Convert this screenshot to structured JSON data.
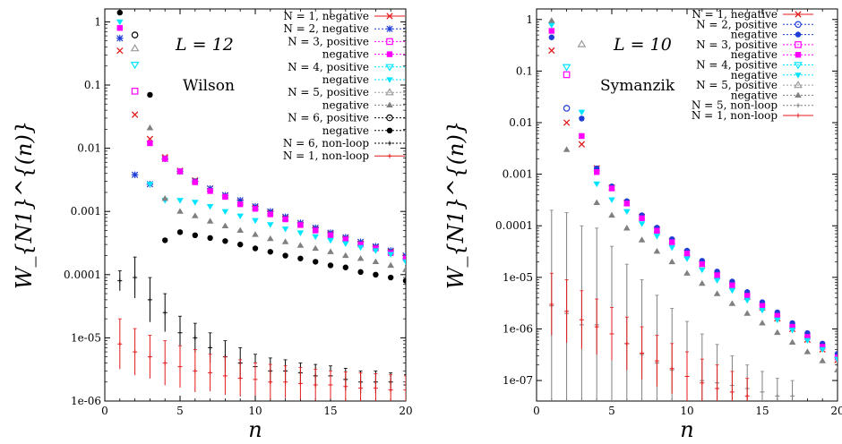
{
  "chart_data": [
    {
      "type": "scatter",
      "ylabel": "W_{N1}^{(n)}",
      "xlabel": "n",
      "yscale": "log",
      "xlim": [
        0,
        20
      ],
      "ylim": [
        1e-06,
        1.6
      ],
      "xticks": [
        "0",
        "5",
        "10",
        "15",
        "20"
      ],
      "yticks": [
        {
          "v": 1,
          "label": "1"
        },
        {
          "v": 0.1,
          "label": "0.1"
        },
        {
          "v": 0.01,
          "label": "0.01"
        },
        {
          "v": 0.001,
          "label": "0.001"
        },
        {
          "v": 0.0001,
          "label": "0.0001"
        },
        {
          "v": 1e-05,
          "label": "1e-05"
        },
        {
          "v": 1e-06,
          "label": "1e-06"
        }
      ],
      "annotations": [
        "L = 12",
        "Wilson"
      ],
      "legend_position": "top-right",
      "series": [
        {
          "name": "N = 1, negative",
          "color": "#e41a1c",
          "marker": "x",
          "x": [
            1,
            2,
            3,
            4,
            5,
            6,
            7,
            8,
            9,
            10,
            11,
            12,
            13,
            14,
            15,
            16,
            17,
            18,
            19,
            20
          ],
          "y": [
            0.35,
            0.034,
            0.014,
            0.0072,
            0.0044,
            0.0031,
            0.0023,
            0.0018,
            0.0014,
            0.00115,
            0.00095,
            0.00078,
            0.00062,
            0.00052,
            0.00044,
            0.00037,
            0.00031,
            0.00027,
            0.00023,
            0.00019
          ]
        },
        {
          "name": "N = 2, negative",
          "color": "#1f3cd8",
          "marker": "asterisk",
          "x": [
            1,
            2,
            3,
            4,
            5,
            6,
            7,
            8,
            9,
            10,
            11,
            12,
            13,
            14,
            15,
            16,
            17,
            18,
            19,
            20
          ],
          "y": [
            0.55,
            0.0038,
            0.0027,
            0.0068,
            0.0043,
            0.003,
            0.0023,
            0.0018,
            0.0015,
            0.0012,
            0.001,
            0.00082,
            0.00066,
            0.00055,
            0.00046,
            0.00039,
            0.00033,
            0.00028,
            0.00024,
            0.0002
          ]
        },
        {
          "name": "N = 3, positive",
          "color": "#ff00ff",
          "marker": "open-square",
          "x": [
            2
          ],
          "y": [
            0.08
          ]
        },
        {
          "name": "negative",
          "color": "#ff00ff",
          "marker": "filled-square",
          "x": [
            1,
            3,
            4,
            5,
            6,
            7,
            8,
            9,
            10,
            11,
            12,
            13,
            14,
            15,
            16,
            17,
            18,
            19,
            20
          ],
          "y": [
            0.8,
            0.012,
            0.0068,
            0.0043,
            0.0029,
            0.0021,
            0.0017,
            0.0013,
            0.0011,
            0.0009,
            0.00075,
            0.00061,
            0.0005,
            0.00042,
            0.00036,
            0.0003,
            0.00026,
            0.00022,
            0.00018
          ]
        },
        {
          "name": "N = 4, positive",
          "color": "#00e5ff",
          "marker": "open-triangle-down",
          "x": [
            2
          ],
          "y": [
            0.21
          ]
        },
        {
          "name": "negative",
          "color": "#00e5ff",
          "marker": "filled-triangle-down",
          "x": [
            1,
            3,
            4,
            5,
            6,
            7,
            8,
            9,
            10,
            11,
            12,
            13,
            14,
            15,
            16,
            17,
            18,
            19,
            20
          ],
          "y": [
            1.0,
            0.0027,
            0.0015,
            0.0015,
            0.0014,
            0.0012,
            0.001,
            0.00085,
            0.00072,
            0.00062,
            0.00053,
            0.00046,
            0.0004,
            0.00035,
            0.00031,
            0.00027,
            0.00024,
            0.00021,
            0.00016
          ]
        },
        {
          "name": "N = 5, positive",
          "color": "#9a9a9a",
          "marker": "open-triangle",
          "x": [
            2
          ],
          "y": [
            0.38
          ]
        },
        {
          "name": "negative",
          "color": "#808080",
          "marker": "filled-triangle",
          "x": [
            3,
            4,
            5,
            6,
            7,
            8,
            9,
            10,
            11,
            12,
            13,
            14,
            15,
            16,
            17,
            18,
            19,
            20
          ],
          "y": [
            0.021,
            0.0016,
            0.001,
            0.00085,
            0.0007,
            0.00059,
            0.0005,
            0.00043,
            0.00037,
            0.00033,
            0.00029,
            0.00026,
            0.00023,
            0.0002,
            0.00018,
            0.00016,
            0.00014,
            0.00012
          ]
        },
        {
          "name": "N = 6, positive",
          "color": "#000000",
          "marker": "open-circle",
          "x": [
            2
          ],
          "y": [
            0.62
          ]
        },
        {
          "name": "negative",
          "color": "#000000",
          "marker": "filled-circle",
          "x": [
            1,
            3,
            4,
            5,
            6,
            7,
            8,
            9,
            10,
            11,
            12,
            13,
            14,
            15,
            16,
            17,
            18,
            19,
            20
          ],
          "y": [
            1.4,
            0.07,
            0.00035,
            0.00047,
            0.00042,
            0.00038,
            0.00034,
            0.0003,
            0.00026,
            0.00023,
            0.0002,
            0.00018,
            0.00016,
            0.00014,
            0.00013,
            0.00011,
            0.0001,
            9e-05,
            8e-05
          ]
        },
        {
          "name": "N = 6, non-loop",
          "color": "#000000",
          "marker": "plus-errorbar",
          "x": [
            1,
            2,
            3,
            4,
            5,
            6,
            7,
            8,
            9,
            10,
            11,
            12,
            13,
            14,
            15,
            16,
            17,
            18,
            19,
            20
          ],
          "y": [
            8e-05,
            9e-05,
            4e-05,
            2.5e-05,
            1.2e-05,
            1e-05,
            7e-06,
            5e-06,
            4e-06,
            3.5e-06,
            3e-06,
            3e-06,
            2.8e-06,
            2.5e-06,
            2.5e-06,
            2.2e-06,
            2e-06,
            2e-06,
            2e-06,
            1.8e-06
          ],
          "yerr_hi": [
            0.000115,
            0.00019,
            9e-05,
            5e-05,
            2.2e-05,
            1.7e-05,
            1.2e-05,
            9e-06,
            7e-06,
            5.5e-06,
            4.8e-06,
            4.5e-06,
            4e-06,
            3.8e-06,
            3.6e-06,
            3.3e-06,
            3e-06,
            3e-06,
            2.8e-06,
            2.6e-06
          ]
        },
        {
          "name": "N = 1, non-loop",
          "color": "#e41a1c",
          "marker": "plus-errorbar",
          "x": [
            1,
            2,
            3,
            4,
            5,
            6,
            7,
            8,
            9,
            10,
            11,
            12,
            13,
            14,
            15,
            16,
            17,
            18,
            19,
            20
          ],
          "y": [
            8e-06,
            6e-06,
            5e-06,
            4e-06,
            3.5e-06,
            3e-06,
            2.8e-06,
            2.5e-06,
            2.3e-06,
            2.2e-06,
            2e-06,
            2e-06,
            1.9e-06,
            1.8e-06,
            1.8e-06,
            1.7e-06,
            1.6e-06,
            1.6e-06,
            1.5e-06,
            1.5e-06
          ],
          "yerr_hi": [
            2e-05,
            1.4e-05,
            1.1e-05,
            9e-06,
            7.5e-06,
            6.5e-06,
            5.5e-06,
            5e-06,
            4.5e-06,
            4e-06,
            3.8e-06,
            3.6e-06,
            3.4e-06,
            3.2e-06,
            3e-06,
            2.9e-06,
            2.8e-06,
            2.7e-06,
            2.6e-06,
            2.5e-06
          ]
        }
      ]
    },
    {
      "type": "scatter",
      "ylabel": "W_{N1}^{(n)}",
      "xlabel": "n",
      "yscale": "log",
      "xlim": [
        0,
        20
      ],
      "ylim": [
        4e-08,
        1.6
      ],
      "xticks": [
        "0",
        "5",
        "10",
        "15",
        "20"
      ],
      "yticks": [
        {
          "v": 1,
          "label": "1"
        },
        {
          "v": 0.1,
          "label": "0.1"
        },
        {
          "v": 0.01,
          "label": "0.01"
        },
        {
          "v": 0.001,
          "label": "0.001"
        },
        {
          "v": 0.0001,
          "label": "0.0001"
        },
        {
          "v": 1e-05,
          "label": "1e-05"
        },
        {
          "v": 1e-06,
          "label": "1e-06"
        },
        {
          "v": 1e-07,
          "label": "1e-07"
        }
      ],
      "annotations": [
        "L = 10",
        "Symanzik"
      ],
      "legend_position": "top-right",
      "series": [
        {
          "name": "N = 1, negative",
          "color": "#e41a1c",
          "marker": "x",
          "x": [
            1,
            2,
            3,
            4,
            5,
            6,
            7,
            8,
            9,
            10,
            11,
            12,
            13,
            14,
            15,
            16,
            17,
            18,
            19,
            20
          ],
          "y": [
            0.25,
            0.01,
            0.0038,
            0.0013,
            0.00055,
            0.00028,
            0.00015,
            8.5e-05,
            5e-05,
            3e-05,
            1.8e-05,
            1.1e-05,
            6.8e-06,
            4.2e-06,
            2.6e-06,
            1.6e-06,
            1e-06,
            6.2e-07,
            4e-07,
            2.5e-07
          ]
        },
        {
          "name": "N = 2, positive",
          "color": "#1f3cd8",
          "marker": "open-circle",
          "x": [
            2
          ],
          "y": [
            0.019
          ]
        },
        {
          "name": "negative",
          "color": "#1f3cd8",
          "marker": "filled-circle",
          "x": [
            1,
            3,
            4,
            5,
            6,
            7,
            8,
            9,
            10,
            11,
            12,
            13,
            14,
            15,
            16,
            17,
            18,
            19,
            20
          ],
          "y": [
            0.45,
            0.012,
            0.0013,
            0.00058,
            0.0003,
            0.00016,
            9.2e-05,
            5.5e-05,
            3.3e-05,
            2.1e-05,
            1.3e-05,
            8.3e-06,
            5.2e-06,
            3.3e-06,
            2.1e-06,
            1.3e-06,
            8.3e-07,
            5.2e-07,
            3.3e-07
          ]
        },
        {
          "name": "N = 3, positive",
          "color": "#ff00ff",
          "marker": "open-square",
          "x": [
            2
          ],
          "y": [
            0.085
          ]
        },
        {
          "name": "negative",
          "color": "#ff00ff",
          "marker": "filled-square",
          "x": [
            1,
            3,
            4,
            5,
            6,
            7,
            8,
            9,
            10,
            11,
            12,
            13,
            14,
            15,
            16,
            17,
            18,
            19,
            20
          ],
          "y": [
            0.6,
            0.0055,
            0.0011,
            0.00053,
            0.00027,
            0.00014,
            8e-05,
            4.8e-05,
            2.9e-05,
            1.8e-05,
            1.1e-05,
            7e-06,
            4.4e-06,
            2.8e-06,
            1.8e-06,
            1.1e-06,
            7e-07,
            4.5e-07,
            2.8e-07
          ]
        },
        {
          "name": "N = 4, positive",
          "color": "#00e5ff",
          "marker": "open-triangle-down",
          "x": [
            2
          ],
          "y": [
            0.12
          ]
        },
        {
          "name": "negative",
          "color": "#00e5ff",
          "marker": "filled-triangle-down",
          "x": [
            1,
            3,
            4,
            5,
            6,
            7,
            8,
            9,
            10,
            11,
            12,
            13,
            14,
            15,
            16,
            17,
            18,
            19,
            20
          ],
          "y": [
            0.78,
            0.016,
            0.00065,
            0.00032,
            0.00019,
            0.00011,
            6.3e-05,
            3.8e-05,
            2.3e-05,
            1.4e-05,
            8.8e-06,
            5.6e-06,
            3.6e-06,
            2.3e-06,
            1.5e-06,
            9.5e-07,
            6e-07,
            4e-07,
            2.6e-07
          ]
        },
        {
          "name": "N = 5, positive",
          "color": "#9a9a9a",
          "marker": "open-triangle",
          "x": [
            3
          ],
          "y": [
            0.33
          ]
        },
        {
          "name": "negative",
          "color": "#808080",
          "marker": "filled-triangle",
          "x": [
            1,
            2,
            4,
            5,
            6,
            7,
            8,
            9,
            10,
            11,
            12,
            13,
            14,
            15,
            16,
            17,
            18,
            19,
            20
          ],
          "y": [
            0.95,
            0.003,
            0.00028,
            0.00016,
            9e-05,
            5.3e-05,
            3.2e-05,
            2e-05,
            1.2e-05,
            7.6e-06,
            4.8e-06,
            3.1e-06,
            2e-06,
            1.3e-06,
            8.5e-07,
            5.5e-07,
            3.6e-07,
            2.4e-07,
            1.6e-07
          ]
        },
        {
          "name": "N = 5, non-loop",
          "color": "#808080",
          "marker": "plus-errorbar",
          "x": [
            1,
            2,
            3,
            4,
            5,
            6,
            7,
            8,
            9,
            10,
            11,
            12,
            13,
            14,
            15,
            16,
            17
          ],
          "y": [
            2.8e-06,
            2e-06,
            1.2e-06,
            1.2e-06,
            8e-07,
            5.2e-07,
            3.2e-07,
            2.2e-07,
            1.6e-07,
            1.2e-07,
            1e-07,
            9e-08,
            8e-08,
            7e-08,
            6e-08,
            5e-08,
            5e-08
          ],
          "yerr_hi": [
            0.0002,
            0.00018,
            0.0001,
            9e-05,
            4e-05,
            1.8e-05,
            9e-06,
            4.5e-06,
            2.5e-06,
            1.4e-06,
            8e-07,
            5e-07,
            3e-07,
            2e-07,
            1.5e-07,
            1.1e-07,
            1e-07
          ]
        },
        {
          "name": "N = 1, non-loop",
          "color": "#e41a1c",
          "marker": "plus-errorbar",
          "x": [
            1,
            2,
            3,
            4,
            5,
            6,
            7,
            8,
            9,
            10,
            11,
            12,
            13,
            14
          ],
          "y": [
            3e-06,
            2.2e-06,
            1.5e-06,
            1.1e-06,
            8e-07,
            5.2e-07,
            3.4e-07,
            2.4e-07,
            1.7e-07,
            1.2e-07,
            9e-08,
            7e-08,
            6e-08,
            5e-08
          ],
          "yerr_hi": [
            1.2e-05,
            9e-06,
            5.5e-06,
            3.8e-06,
            2.6e-06,
            1.7e-06,
            1.1e-06,
            7.5e-07,
            5.2e-07,
            3.6e-07,
            2.6e-07,
            2e-07,
            1.5e-07,
            1.1e-07
          ]
        }
      ]
    }
  ]
}
